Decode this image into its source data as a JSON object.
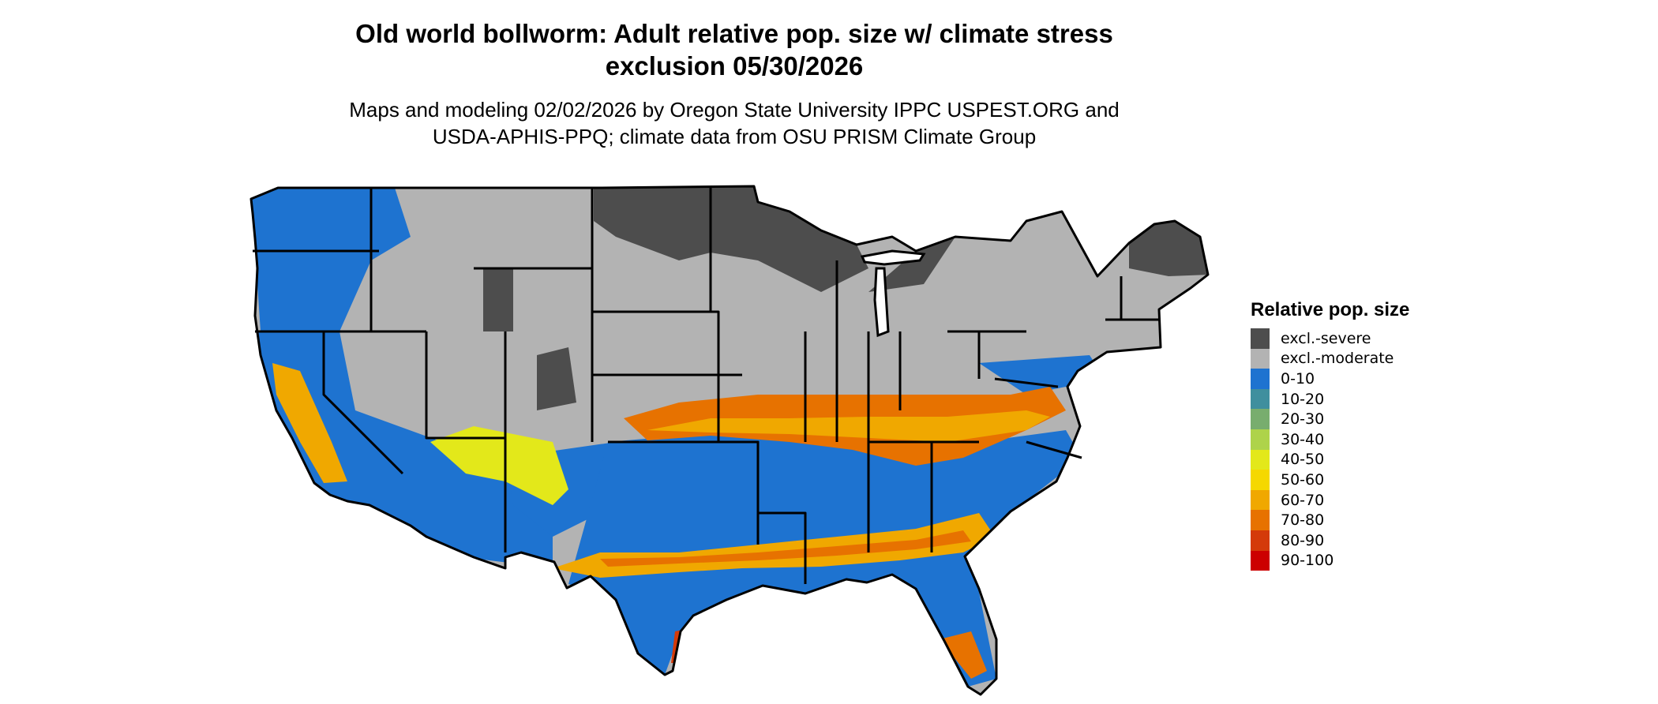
{
  "title_line1": "Old world bollworm: Adult relative pop. size w/ climate stress",
  "title_line2": "exclusion 05/30/2026",
  "subtitle_line1": "Maps and modeling 02/02/2026 by Oregon State University IPPC USPEST.ORG and",
  "subtitle_line2": "USDA-APHIS-PPQ; climate data from OSU PRISM Climate Group",
  "legend": {
    "title": "Relative pop. size",
    "items": [
      {
        "label": "excl.-severe",
        "color": "#4d4d4d"
      },
      {
        "label": "excl.-moderate",
        "color": "#b3b3b3"
      },
      {
        "label": "0-10",
        "color": "#1e73d0"
      },
      {
        "label": "10-20",
        "color": "#3f8f9e"
      },
      {
        "label": "20-30",
        "color": "#78ad6e"
      },
      {
        "label": "30-40",
        "color": "#aed34a"
      },
      {
        "label": "40-50",
        "color": "#e3e81a"
      },
      {
        "label": "50-60",
        "color": "#f5d800"
      },
      {
        "label": "60-70",
        "color": "#f0a800"
      },
      {
        "label": "70-80",
        "color": "#e77200"
      },
      {
        "label": "80-90",
        "color": "#d43a0a"
      },
      {
        "label": "90-100",
        "color": "#cc0000"
      }
    ]
  }
}
